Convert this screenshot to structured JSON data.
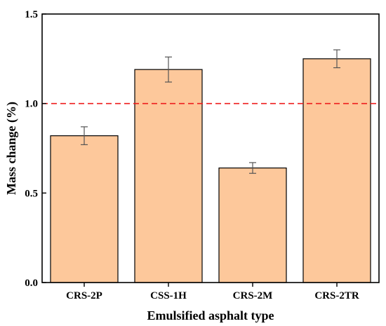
{
  "chart_data": {
    "type": "bar",
    "title": "",
    "xlabel": "Emulsified asphalt type",
    "ylabel": "Mass change (%)",
    "categories": [
      "CRS-2P",
      "CSS-1H",
      "CRS-2M",
      "CRS-2TR"
    ],
    "values": [
      0.82,
      1.19,
      0.64,
      1.25
    ],
    "error": [
      0.05,
      0.07,
      0.03,
      0.05
    ],
    "ylim": [
      0.0,
      1.5
    ],
    "yticks": [
      0.0,
      0.5,
      1.0,
      1.5
    ],
    "ytick_labels": [
      "0.0",
      "0.5",
      "1.0",
      "1.5"
    ],
    "reference_line": {
      "value": 1.0,
      "style": "dashed",
      "color": "#ee1c1c"
    },
    "bar_color": "#fdc89b",
    "grid": false,
    "legend": "none"
  }
}
